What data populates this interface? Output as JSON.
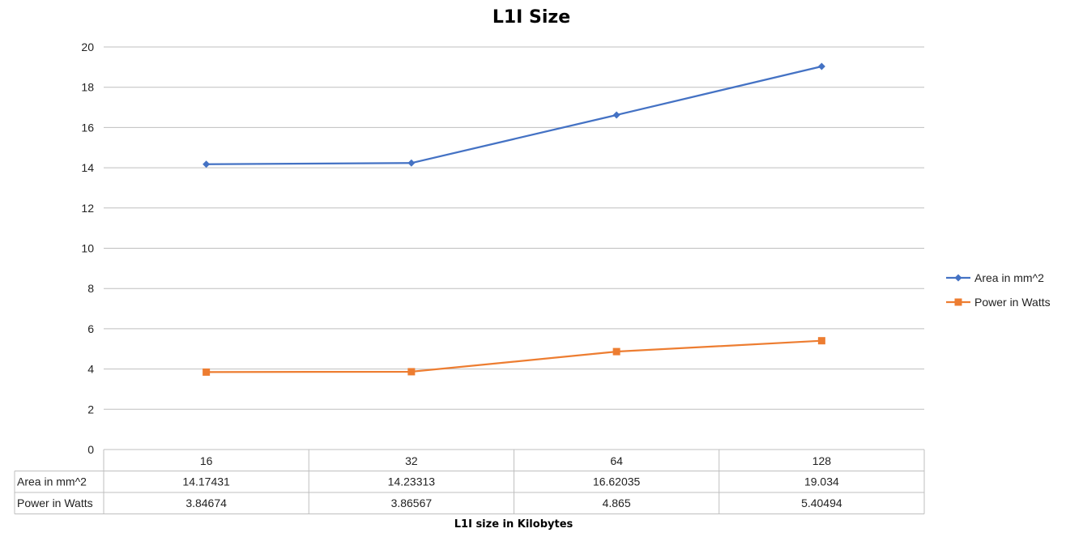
{
  "chart_data": {
    "type": "line",
    "title": "L1I Size",
    "xlabel": "L1I size in Kilobytes",
    "ylabel": "",
    "categories": [
      "16",
      "32",
      "64",
      "128"
    ],
    "ylim": [
      0,
      20
    ],
    "yticks": [
      0,
      2,
      4,
      6,
      8,
      10,
      12,
      14,
      16,
      18,
      20
    ],
    "grid": true,
    "legend": "right",
    "data_table": true,
    "series": [
      {
        "name": "Area in mm^2",
        "color": "#4472c4",
        "marker": "diamond",
        "values": [
          14.17431,
          14.23313,
          16.62035,
          19.034
        ],
        "labels": [
          "14.17431",
          "14.23313",
          "16.62035",
          "19.034"
        ]
      },
      {
        "name": "Power in Watts",
        "color": "#ed7d31",
        "marker": "square",
        "values": [
          3.84674,
          3.86567,
          4.865,
          5.40494
        ],
        "labels": [
          "3.84674",
          "3.86567",
          "4.865",
          "5.40494"
        ]
      }
    ]
  }
}
